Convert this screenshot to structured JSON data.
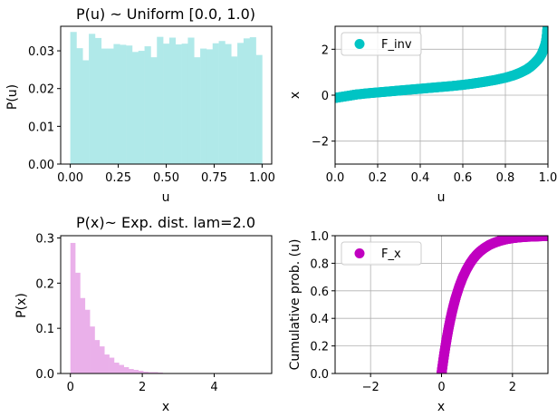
{
  "chart_data": [
    {
      "type": "bar",
      "title": "P(u) ~ Uniform [0.0, 1.0)",
      "xlabel": "u",
      "ylabel": "P(u)",
      "xlim": [
        -0.05,
        1.05
      ],
      "ylim": [
        0.0,
        0.0365
      ],
      "xticks": [
        0.0,
        0.25,
        0.5,
        0.75,
        1.0
      ],
      "xtick_labels": [
        "0.00",
        "0.25",
        "0.50",
        "0.75",
        "1.00"
      ],
      "yticks": [
        0.0,
        0.01,
        0.02,
        0.03
      ],
      "ytick_labels": [
        "0.00",
        "0.01",
        "0.02",
        "0.03"
      ],
      "bin_edges": [
        0.0,
        1.0
      ],
      "values": [
        0.035,
        0.0307,
        0.0275,
        0.0345,
        0.0334,
        0.0306,
        0.0306,
        0.0318,
        0.0316,
        0.0314,
        0.0297,
        0.03,
        0.0312,
        0.0283,
        0.0337,
        0.0319,
        0.0335,
        0.0317,
        0.0319,
        0.0335,
        0.0283,
        0.0306,
        0.0304,
        0.032,
        0.0326,
        0.0318,
        0.0285,
        0.0321,
        0.0333,
        0.0336,
        0.0289
      ],
      "color": "#b0e9e9",
      "grid": false
    },
    {
      "type": "scatter",
      "title": "",
      "xlabel": "u",
      "ylabel": "x",
      "xlim": [
        0.0,
        1.0
      ],
      "ylim": [
        -3.0,
        3.0
      ],
      "xticks": [
        0.0,
        0.2,
        0.4,
        0.6,
        0.8,
        1.0
      ],
      "xtick_labels": [
        "0.0",
        "0.2",
        "0.4",
        "0.6",
        "0.8",
        "1.0"
      ],
      "yticks": [
        -2,
        0,
        2
      ],
      "ytick_labels": [
        "−2",
        "0",
        "2"
      ],
      "series": [
        {
          "name": "F_inv",
          "color": "#00c4c4",
          "x": [
            0.0,
            0.02,
            0.04,
            0.06,
            0.08,
            0.1,
            0.15,
            0.2,
            0.25,
            0.3,
            0.35,
            0.4,
            0.45,
            0.5,
            0.55,
            0.6,
            0.65,
            0.7,
            0.75,
            0.8,
            0.84,
            0.87,
            0.9,
            0.92,
            0.94,
            0.95,
            0.96,
            0.97,
            0.98,
            0.985,
            0.99,
            0.993,
            0.996,
            0.998
          ],
          "y": [
            -0.12,
            -0.09,
            -0.06,
            -0.03,
            0.0,
            0.03,
            0.08,
            0.12,
            0.16,
            0.2,
            0.24,
            0.28,
            0.32,
            0.36,
            0.4,
            0.45,
            0.51,
            0.58,
            0.66,
            0.76,
            0.87,
            0.98,
            1.12,
            1.25,
            1.42,
            1.52,
            1.63,
            1.78,
            2.0,
            2.12,
            2.28,
            2.45,
            2.7,
            2.95
          ]
        }
      ],
      "legend_position": "top-left",
      "grid": true
    },
    {
      "type": "bar",
      "title": "P(x)~ Exp. dist. lam=2.0",
      "xlabel": "x",
      "ylabel": "P(x)",
      "xlim": [
        -0.27,
        5.6
      ],
      "ylim": [
        0.0,
        0.305
      ],
      "xticks": [
        0,
        2,
        4
      ],
      "xtick_labels": [
        "0",
        "2",
        "4"
      ],
      "yticks": [
        0.0,
        0.1,
        0.2,
        0.3
      ],
      "ytick_labels": [
        "0.0",
        "0.1",
        "0.2",
        "0.3"
      ],
      "bin_edges": [
        0.0,
        5.4
      ],
      "values": [
        0.289,
        0.223,
        0.167,
        0.141,
        0.104,
        0.074,
        0.06,
        0.042,
        0.035,
        0.024,
        0.019,
        0.014,
        0.01,
        0.008,
        0.006,
        0.004,
        0.003,
        0.003,
        0.002,
        0.001,
        0.001,
        0.001,
        0.001,
        0.0005,
        0.0005,
        0.0004,
        0.0003,
        0.0003,
        0.0002,
        0.0002,
        0.0002,
        0.0001,
        0.0001,
        0.0001,
        0.0001,
        0.0001,
        0.0001,
        0.0001,
        0.0001,
        0.0001
      ],
      "color": "#eab0ea",
      "grid": false
    },
    {
      "type": "scatter",
      "title": "",
      "xlabel": "x",
      "ylabel": "Cumulative prob. (u)",
      "xlim": [
        -3.0,
        3.0
      ],
      "ylim": [
        0.0,
        1.0
      ],
      "xticks": [
        -2,
        0,
        2
      ],
      "xtick_labels": [
        "−2",
        "0",
        "2"
      ],
      "yticks": [
        0.0,
        0.2,
        0.4,
        0.6,
        0.8,
        1.0
      ],
      "ytick_labels": [
        "0.0",
        "0.2",
        "0.4",
        "0.6",
        "0.8",
        "1.0"
      ],
      "series": [
        {
          "name": "F_x",
          "color": "#c000c0",
          "x": [
            0.0,
            0.02,
            0.05,
            0.08,
            0.11,
            0.15,
            0.2,
            0.25,
            0.3,
            0.35,
            0.4,
            0.5,
            0.6,
            0.7,
            0.8,
            0.9,
            1.0,
            1.1,
            1.2,
            1.35,
            1.5,
            1.65,
            1.8,
            2.0,
            2.2,
            2.4,
            2.6,
            2.8,
            3.0
          ],
          "y": [
            0.0,
            0.039,
            0.095,
            0.148,
            0.197,
            0.259,
            0.33,
            0.393,
            0.451,
            0.503,
            0.551,
            0.632,
            0.699,
            0.753,
            0.798,
            0.835,
            0.865,
            0.889,
            0.909,
            0.933,
            0.95,
            0.963,
            0.973,
            0.982,
            0.988,
            0.992,
            0.994,
            0.996,
            0.998
          ]
        }
      ],
      "legend_position": "top-left",
      "grid": true
    }
  ]
}
